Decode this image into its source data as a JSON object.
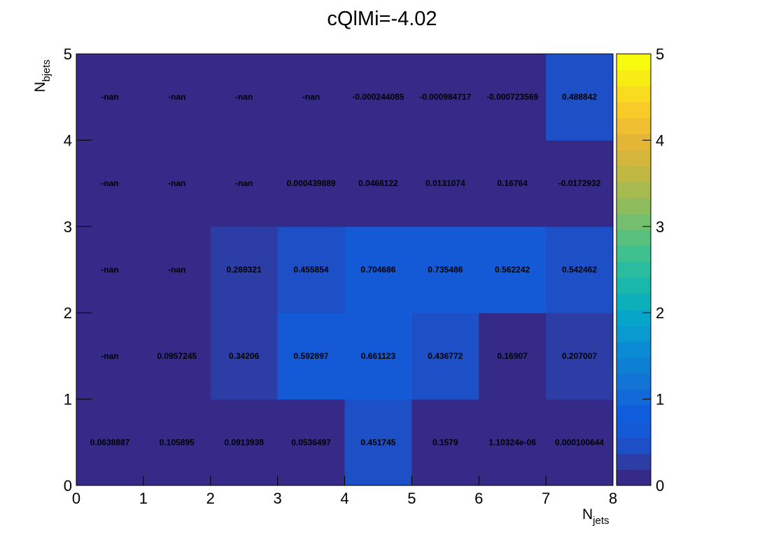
{
  "chart_data": {
    "type": "heatmap",
    "title": "cQlMi=-4.02",
    "xlabel": "N",
    "xlabel_sub": "jets",
    "ylabel": "N",
    "ylabel_sub": "bjets",
    "xlim": [
      0,
      8
    ],
    "ylim": [
      0,
      5
    ],
    "x_ticks": [
      "0",
      "1",
      "2",
      "3",
      "4",
      "5",
      "6",
      "7",
      "8"
    ],
    "y_ticks": [
      "0",
      "1",
      "2",
      "3",
      "4",
      "5"
    ],
    "colorbar": {
      "min": 0,
      "max": 5,
      "ticks": [
        "0",
        "1",
        "2",
        "3",
        "4",
        "5"
      ]
    },
    "grid": false,
    "rows": [
      {
        "y_bin": [
          0,
          1
        ],
        "values": [
          0.0638887,
          0.105895,
          0.0913938,
          0.0536497,
          0.451745,
          0.1579,
          1.10324e-06,
          0.000100644
        ],
        "labels": [
          "0.0638887",
          "0.105895",
          "0.0913938",
          "0.0536497",
          "0.451745",
          "0.1579",
          "1.10324e-06",
          "0.000100644"
        ]
      },
      {
        "y_bin": [
          1,
          2
        ],
        "values": [
          null,
          0.0957245,
          0.34206,
          0.592897,
          0.661123,
          0.436772,
          0.16907,
          0.207007
        ],
        "labels": [
          "-nan",
          "0.0957245",
          "0.34206",
          "0.592897",
          "0.661123",
          "0.436772",
          "0.16907",
          "0.207007"
        ]
      },
      {
        "y_bin": [
          2,
          3
        ],
        "values": [
          null,
          null,
          0.269321,
          0.455854,
          0.704686,
          0.735486,
          0.562242,
          0.542462
        ],
        "labels": [
          "-nan",
          "-nan",
          "0.269321",
          "0.455854",
          "0.704686",
          "0.735486",
          "0.562242",
          "0.542462"
        ]
      },
      {
        "y_bin": [
          3,
          4
        ],
        "values": [
          null,
          null,
          null,
          0.000439889,
          0.0466122,
          0.0131074,
          0.16764,
          -0.0172932
        ],
        "labels": [
          "-nan",
          "-nan",
          "-nan",
          "0.000439889",
          "0.0466122",
          "0.0131074",
          "0.16764",
          "-0.0172932"
        ]
      },
      {
        "y_bin": [
          4,
          5
        ],
        "values": [
          null,
          null,
          null,
          null,
          -0.000244085,
          -0.000984717,
          -0.000723569,
          0.488842
        ],
        "labels": [
          "-nan",
          "-nan",
          "-nan",
          "-nan",
          "-0.000244085",
          "-0.000984717",
          "-0.000723569",
          "0.488842"
        ]
      }
    ]
  },
  "colors": {
    "nan_cell": "#352a87",
    "palette": [
      "#352a87",
      "#2c3ea5",
      "#1d4fc6",
      "#145ad6",
      "#0f5cdd",
      "#1269d9",
      "#1374d5",
      "#0d80d3",
      "#0a8bd3",
      "#089ad0",
      "#07a6c8",
      "#0cb0bb",
      "#1ab7ad",
      "#2abc9e",
      "#3ec08f",
      "#58c17e",
      "#73bf6e",
      "#8fbd5e",
      "#a8bb4f",
      "#c0b842",
      "#d3b63b",
      "#e3b636",
      "#f1bf32",
      "#f9cb29",
      "#f9db20",
      "#f8ec15",
      "#f9fb0e"
    ]
  }
}
